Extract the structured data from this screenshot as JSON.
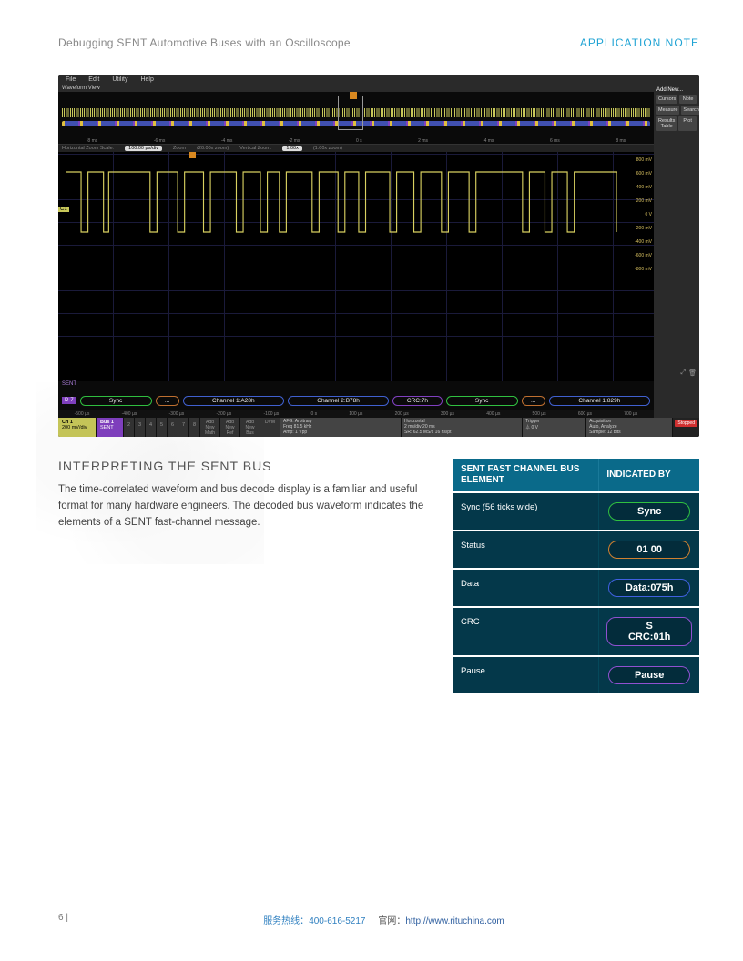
{
  "header": {
    "left": "Debugging SENT Automotive Buses with an Oscilloscope",
    "right": "APPLICATION NOTE"
  },
  "scope": {
    "menus": [
      "File",
      "Edit",
      "Utility",
      "Help"
    ],
    "side_title": "Add New...",
    "side_buttons": [
      [
        "Cursors",
        "Note"
      ],
      [
        "Measure",
        "Search"
      ],
      [
        "Results Table",
        "Plot"
      ]
    ],
    "wv_title": "Waveform View",
    "overview_ticks": [
      "-8 ms",
      "-6 ms",
      "-4 ms",
      "-2 ms",
      "0 s",
      "2 ms",
      "4 ms",
      "6 ms",
      "8 ms"
    ],
    "hscale": {
      "label": "Horizontal Zoom Scale:",
      "value": "100.00 µs/div",
      "note1": "Zoom",
      "pct": "(20.00x zoom)",
      "note2": "Vertical Zoom:",
      "val2": "1.00x",
      "note3": "(1.00x zoom)"
    },
    "ylabels": [
      "800 mV",
      "600 mV",
      "400 mV",
      "200 mV",
      "0 V",
      "-200 mV",
      "-400 mV",
      "-600 mV",
      "-800 mV"
    ],
    "ch_badge": "C1",
    "sent_label": "SENT",
    "bus_badge": "D-7",
    "bus_segments": [
      {
        "t": "Sync",
        "cls": "seg-sync"
      },
      {
        "t": "...",
        "cls": "seg-dots"
      },
      {
        "t": "Channel 1:A28h",
        "cls": "seg-ch"
      },
      {
        "t": "Channel 2:B78h",
        "cls": "seg-ch"
      },
      {
        "t": "CRC:7h",
        "cls": "seg-crc"
      },
      {
        "t": "Sync",
        "cls": "seg-sync"
      },
      {
        "t": "...",
        "cls": "seg-dots"
      },
      {
        "t": "Channel 1:829h",
        "cls": "seg-ch"
      }
    ],
    "zoom_ticks": [
      "-500 µs",
      "-400 µs",
      "-300 µs",
      "-200 µs",
      "-100 µs",
      "0 s",
      "100 µs",
      "200 µs",
      "300 µs",
      "400 µs",
      "500 µs",
      "600 µs",
      "700 µs"
    ],
    "bottom": {
      "ch": {
        "title": "Ch 1",
        "l1": "200 mV/div",
        "l2": "1 MΩ",
        "l3": "500 MHz"
      },
      "bus": {
        "title": "Bus 1",
        "l1": "SENT"
      },
      "nums": [
        "2",
        "3",
        "4",
        "5",
        "6",
        "7",
        "8"
      ],
      "adds": [
        "Add New Math",
        "Add New Ref",
        "Add New Bus",
        "DVM"
      ],
      "afg": {
        "title": "AFG: Arbitrary",
        "l1": "Freq 81.5 kHz",
        "l2": "Amp: 1 Vpp",
        "l3": "Offset: 0 V"
      },
      "horiz": {
        "title": "Horizontal",
        "l1": "2 ms/div    20 ms",
        "l2": "SR: 62.5 MS/s   16 ns/pt",
        "l3": "RL: 1.25 Mpts   99.0 % ▸"
      },
      "trig": {
        "title": "Trigger",
        "l1": "⏃   0 V"
      },
      "acq": {
        "title": "Acquisition",
        "l1": "Auto, Analyze",
        "l2": "Sample: 12 bits",
        "l3": "Single: 1/1"
      },
      "stopped": "Stopped"
    },
    "trace": {
      "stroke": "#d8d060",
      "hi": 12,
      "lo": 78,
      "edges": [
        0,
        18,
        26,
        44,
        50,
        98,
        106,
        130,
        138,
        160,
        168,
        198,
        206,
        226,
        234,
        248,
        256,
        286,
        294,
        316,
        324,
        340,
        348,
        376,
        384,
        404,
        412,
        436,
        444,
        468,
        476,
        530,
        538,
        556,
        564,
        582,
        590,
        640
      ]
    }
  },
  "section": {
    "title": "INTERPRETING THE SENT BUS",
    "body": "The time-correlated waveform and bus decode display is a familiar and useful format for many hardware engineers. The decoded bus waveform indicates the elements of a SENT fast-channel message."
  },
  "table": {
    "head": [
      "SENT FAST CHANNEL BUS ELEMENT",
      "INDICATED BY"
    ],
    "rows": [
      {
        "label": "Sync (56 ticks wide)",
        "pill": "Sync",
        "cls": "b-green"
      },
      {
        "label": "Status",
        "pill": "01 00",
        "cls": "b-orange"
      },
      {
        "label": "Data",
        "pill": "Data:075h",
        "cls": "b-blue"
      },
      {
        "label": "CRC",
        "pill": "S CRC:01h",
        "cls": "b-purple"
      },
      {
        "label": "Pause",
        "pill": "Pause",
        "cls": "b-purple"
      }
    ]
  },
  "footer": {
    "page": "6  |",
    "hotline_label": "服务热线：",
    "hotline": "400-616-5217",
    "site_label": "官网：",
    "site": "http://www.rituchina.com"
  }
}
